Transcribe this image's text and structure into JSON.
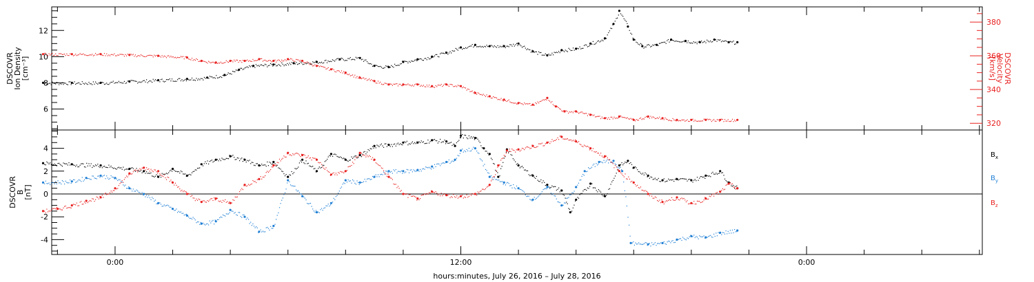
{
  "chart_data": [
    {
      "type": "scatter",
      "panel": "plasma",
      "left_axis": {
        "label_lines": [
          "DSCOVR",
          "Ion Density",
          "[cm⁻³]"
        ],
        "ylim": [
          4.4,
          13.8
        ],
        "ticks": [
          6,
          8,
          10,
          12
        ],
        "color": "#000000"
      },
      "right_axis": {
        "label_lines": [
          "DSCOVR",
          "Velocity",
          "[km/s]"
        ],
        "ylim": [
          316,
          389
        ],
        "ticks": [
          320,
          340,
          360,
          380
        ],
        "color": "#e8201f"
      },
      "series": [
        {
          "axis": "left",
          "color": "#000000",
          "points": [
            [
              -2.5,
              8.0
            ],
            [
              -1.5,
              8.0
            ],
            [
              -0.5,
              8.0
            ],
            [
              0.5,
              8.1
            ],
            [
              1.5,
              8.2
            ],
            [
              2.5,
              8.3
            ],
            [
              3.2,
              8.4
            ],
            [
              3.8,
              8.6
            ],
            [
              4.3,
              9.0
            ],
            [
              4.8,
              9.3
            ],
            [
              5.5,
              9.4
            ],
            [
              6.2,
              9.5
            ],
            [
              7,
              9.6
            ],
            [
              7.8,
              9.8
            ],
            [
              8.5,
              9.9
            ],
            [
              9.0,
              9.3
            ],
            [
              9.5,
              9.2
            ],
            [
              10.0,
              9.6
            ],
            [
              10.5,
              9.8
            ],
            [
              11.0,
              10.0
            ],
            [
              11.5,
              10.3
            ],
            [
              12.0,
              10.7
            ],
            [
              12.5,
              10.9
            ],
            [
              13.0,
              10.8
            ],
            [
              13.5,
              10.8
            ],
            [
              14.0,
              11.0
            ],
            [
              14.5,
              10.4
            ],
            [
              15.0,
              10.1
            ],
            [
              15.5,
              10.5
            ],
            [
              16.0,
              10.6
            ],
            [
              16.5,
              11.0
            ],
            [
              17.0,
              11.4
            ],
            [
              17.3,
              12.5
            ],
            [
              17.5,
              13.5
            ],
            [
              17.8,
              12.3
            ],
            [
              18.0,
              11.3
            ],
            [
              18.3,
              10.8
            ],
            [
              18.8,
              10.9
            ],
            [
              19.3,
              11.3
            ],
            [
              19.8,
              11.2
            ],
            [
              20.3,
              11.1
            ],
            [
              20.8,
              11.3
            ],
            [
              21.3,
              11.1
            ],
            [
              21.6,
              11.1
            ]
          ]
        },
        {
          "axis": "right",
          "color": "#e8201f",
          "points": [
            [
              -2.5,
              361
            ],
            [
              -1.5,
              361
            ],
            [
              -0.5,
              361
            ],
            [
              0.5,
              360.5
            ],
            [
              1.5,
              360
            ],
            [
              2.5,
              359
            ],
            [
              3.0,
              357
            ],
            [
              3.5,
              356
            ],
            [
              4.0,
              357
            ],
            [
              4.5,
              357
            ],
            [
              5.0,
              358
            ],
            [
              5.5,
              357
            ],
            [
              6.0,
              358
            ],
            [
              6.5,
              357
            ],
            [
              7.0,
              354
            ],
            [
              7.5,
              352
            ],
            [
              8.0,
              350
            ],
            [
              8.5,
              347
            ],
            [
              9.0,
              345
            ],
            [
              9.5,
              343
            ],
            [
              10.0,
              343
            ],
            [
              10.5,
              343
            ],
            [
              11.0,
              342
            ],
            [
              11.5,
              343
            ],
            [
              12.0,
              342
            ],
            [
              12.5,
              338
            ],
            [
              13.0,
              336
            ],
            [
              13.5,
              334
            ],
            [
              14.0,
              332
            ],
            [
              14.5,
              331
            ],
            [
              15.0,
              335
            ],
            [
              15.3,
              330
            ],
            [
              15.6,
              327
            ],
            [
              16.0,
              327
            ],
            [
              16.5,
              325
            ],
            [
              17.0,
              323
            ],
            [
              17.5,
              324
            ],
            [
              18.0,
              322
            ],
            [
              18.5,
              324
            ],
            [
              19.0,
              323
            ],
            [
              19.5,
              322
            ],
            [
              20.0,
              322
            ],
            [
              20.5,
              322
            ],
            [
              21.0,
              322
            ],
            [
              21.6,
              322
            ]
          ]
        }
      ]
    },
    {
      "type": "scatter",
      "panel": "magnetic-field",
      "left_axis": {
        "label_lines": [
          "DSCOVR",
          "B",
          "[nT]"
        ],
        "ylim": [
          -5.3,
          5.6
        ],
        "ticks": [
          -4,
          -2,
          0,
          2,
          4
        ],
        "color": "#000000"
      },
      "legend_position": "right",
      "series": [
        {
          "name": "Bx",
          "name_base": "B",
          "name_sub": "x",
          "color": "#000000",
          "points": [
            [
              -2.5,
              2.7
            ],
            [
              -1.5,
              2.6
            ],
            [
              -0.5,
              2.5
            ],
            [
              0.5,
              2.2
            ],
            [
              1.0,
              2.0
            ],
            [
              1.5,
              1.5
            ],
            [
              2.0,
              2.2
            ],
            [
              2.5,
              1.6
            ],
            [
              3.0,
              2.6
            ],
            [
              3.5,
              3.0
            ],
            [
              4.0,
              3.3
            ],
            [
              4.5,
              3.0
            ],
            [
              5.0,
              2.5
            ],
            [
              5.5,
              2.8
            ],
            [
              6.0,
              1.5
            ],
            [
              6.5,
              3.0
            ],
            [
              7.0,
              2.0
            ],
            [
              7.5,
              3.5
            ],
            [
              8.0,
              3.0
            ],
            [
              8.5,
              3.4
            ],
            [
              9.0,
              4.2
            ],
            [
              9.5,
              4.3
            ],
            [
              10.0,
              4.5
            ],
            [
              10.5,
              4.5
            ],
            [
              11.0,
              4.7
            ],
            [
              11.5,
              4.6
            ],
            [
              11.8,
              4.2
            ],
            [
              12.0,
              5.1
            ],
            [
              12.5,
              4.9
            ],
            [
              12.8,
              4.0
            ],
            [
              13.0,
              3.5
            ],
            [
              13.3,
              1.5
            ],
            [
              13.6,
              3.9
            ],
            [
              14.0,
              2.5
            ],
            [
              14.5,
              1.6
            ],
            [
              15.0,
              0.8
            ],
            [
              15.5,
              0.3
            ],
            [
              15.8,
              -1.6
            ],
            [
              16.0,
              -0.5
            ],
            [
              16.5,
              0.9
            ],
            [
              17.0,
              -0.2
            ],
            [
              17.5,
              2.5
            ],
            [
              17.8,
              2.9
            ],
            [
              18.0,
              2.3
            ],
            [
              18.5,
              1.6
            ],
            [
              19.0,
              1.2
            ],
            [
              19.5,
              1.3
            ],
            [
              20.0,
              1.2
            ],
            [
              20.5,
              1.6
            ],
            [
              21.0,
              2.0
            ],
            [
              21.3,
              1.0
            ],
            [
              21.6,
              0.5
            ]
          ]
        },
        {
          "name": "By",
          "name_base": "B",
          "name_sub": "y",
          "color": "#1f7fd4",
          "points": [
            [
              -2.5,
              1.0
            ],
            [
              -1.5,
              1.1
            ],
            [
              -1.0,
              1.4
            ],
            [
              -0.5,
              1.6
            ],
            [
              0.0,
              1.4
            ],
            [
              0.5,
              0.5
            ],
            [
              1.0,
              0.0
            ],
            [
              1.5,
              -0.8
            ],
            [
              2.0,
              -1.3
            ],
            [
              2.5,
              -1.9
            ],
            [
              3.0,
              -2.6
            ],
            [
              3.5,
              -2.4
            ],
            [
              4.0,
              -1.4
            ],
            [
              4.5,
              -2.0
            ],
            [
              5.0,
              -3.3
            ],
            [
              5.5,
              -2.8
            ],
            [
              6.0,
              1.2
            ],
            [
              6.5,
              -0.2
            ],
            [
              7.0,
              -1.6
            ],
            [
              7.5,
              -0.8
            ],
            [
              8.0,
              1.2
            ],
            [
              8.5,
              1.0
            ],
            [
              9.0,
              1.5
            ],
            [
              9.5,
              2.0
            ],
            [
              10.0,
              2.0
            ],
            [
              10.5,
              2.1
            ],
            [
              11.0,
              2.4
            ],
            [
              11.5,
              2.8
            ],
            [
              11.8,
              3.0
            ],
            [
              12.0,
              3.8
            ],
            [
              12.5,
              4.0
            ],
            [
              13.0,
              1.5
            ],
            [
              13.5,
              1.0
            ],
            [
              14.0,
              0.5
            ],
            [
              14.5,
              -0.5
            ],
            [
              15.0,
              0.6
            ],
            [
              15.5,
              -1.0
            ],
            [
              16.0,
              0.6
            ],
            [
              16.3,
              2.0
            ],
            [
              16.8,
              2.8
            ],
            [
              17.3,
              2.9
            ],
            [
              17.6,
              2.0
            ],
            [
              17.9,
              -4.3
            ],
            [
              18.5,
              -4.4
            ],
            [
              19.0,
              -4.3
            ],
            [
              19.5,
              -4.0
            ],
            [
              20.0,
              -3.7
            ],
            [
              20.5,
              -3.8
            ],
            [
              21.0,
              -3.4
            ],
            [
              21.6,
              -3.2
            ]
          ]
        },
        {
          "name": "Bz",
          "name_base": "B",
          "name_sub": "z",
          "color": "#e8201f",
          "points": [
            [
              -2.5,
              -1.5
            ],
            [
              -2.0,
              -1.3
            ],
            [
              -1.5,
              -1.0
            ],
            [
              -1.0,
              -0.6
            ],
            [
              -0.5,
              -0.3
            ],
            [
              0.0,
              0.5
            ],
            [
              0.5,
              1.8
            ],
            [
              1.0,
              2.3
            ],
            [
              1.5,
              2.0
            ],
            [
              2.0,
              1.0
            ],
            [
              2.5,
              0.0
            ],
            [
              3.0,
              -0.7
            ],
            [
              3.5,
              -0.4
            ],
            [
              4.0,
              -0.8
            ],
            [
              4.5,
              0.8
            ],
            [
              5.0,
              1.3
            ],
            [
              5.5,
              2.5
            ],
            [
              6.0,
              3.6
            ],
            [
              6.5,
              3.4
            ],
            [
              7.0,
              3.0
            ],
            [
              7.5,
              1.7
            ],
            [
              8.0,
              2.0
            ],
            [
              8.5,
              3.6
            ],
            [
              9.0,
              3.0
            ],
            [
              9.5,
              1.5
            ],
            [
              10.0,
              0.0
            ],
            [
              10.5,
              -0.4
            ],
            [
              11.0,
              0.2
            ],
            [
              11.5,
              -0.1
            ],
            [
              12.0,
              -0.2
            ],
            [
              12.5,
              0.0
            ],
            [
              13.0,
              0.8
            ],
            [
              13.3,
              2.5
            ],
            [
              13.6,
              3.8
            ],
            [
              14.0,
              3.9
            ],
            [
              14.5,
              4.2
            ],
            [
              15.0,
              4.5
            ],
            [
              15.5,
              5.0
            ],
            [
              16.0,
              4.6
            ],
            [
              16.5,
              4.0
            ],
            [
              17.0,
              3.3
            ],
            [
              17.5,
              2.0
            ],
            [
              18.0,
              1.0
            ],
            [
              18.5,
              0.0
            ],
            [
              19.0,
              -0.7
            ],
            [
              19.5,
              -0.3
            ],
            [
              20.0,
              -0.8
            ],
            [
              20.5,
              -0.4
            ],
            [
              21.0,
              0.2
            ],
            [
              21.3,
              0.9
            ],
            [
              21.6,
              0.5
            ]
          ]
        }
      ]
    }
  ],
  "x_axis": {
    "unit": "hours",
    "xlim": [
      -2.2,
      30.1
    ],
    "tick_labels": [
      {
        "x": 0,
        "label": "0:00"
      },
      {
        "x": 12,
        "label": "12:00"
      },
      {
        "x": 24,
        "label": "0:00"
      }
    ],
    "title": "hours:minutes, July 26, 2016 – July 28, 2016"
  }
}
